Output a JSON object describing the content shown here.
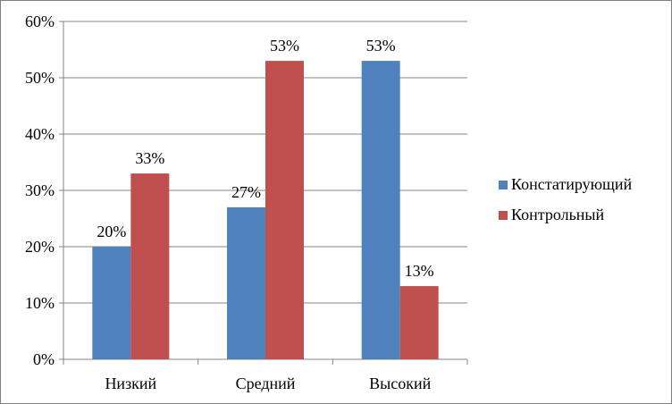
{
  "chart_data": {
    "type": "bar",
    "categories": [
      "Низкий",
      "Средний",
      "Высокий"
    ],
    "series": [
      {
        "name": "Констатирующий",
        "values": [
          20,
          27,
          53
        ],
        "labels": [
          "20%",
          "27%",
          "53%"
        ],
        "color": "#4f81bd"
      },
      {
        "name": "Контрольный",
        "values": [
          33,
          53,
          13
        ],
        "labels": [
          "33%",
          "53%",
          "13%"
        ],
        "color": "#c0504d"
      }
    ],
    "yticks": [
      "0%",
      "10%",
      "20%",
      "30%",
      "40%",
      "50%",
      "60%"
    ],
    "ylim": [
      0,
      60
    ],
    "grid": true,
    "legend": "right",
    "title": "",
    "xlabel": "",
    "ylabel": ""
  }
}
